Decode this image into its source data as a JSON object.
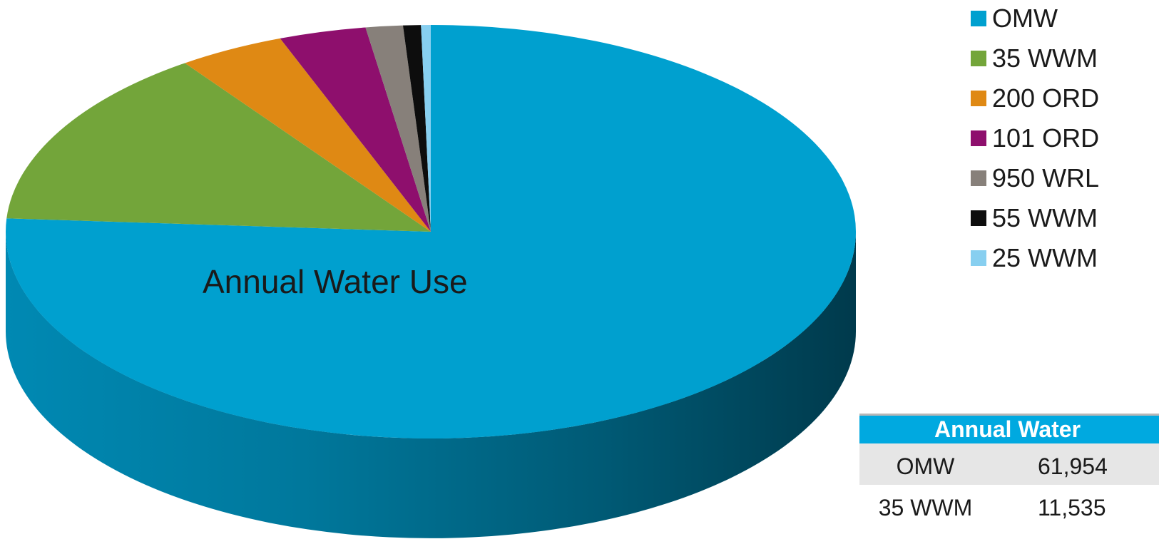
{
  "chart_data": {
    "type": "pie",
    "title": "Annual Water Use",
    "categories": [
      "OMW",
      "35 WWM",
      "200 ORD",
      "101 ORD",
      "950 WRL",
      "55 WWM",
      "25 WWM"
    ],
    "values": [
      61954,
      11535,
      3300,
      2700,
      1150,
      550,
      300
    ],
    "colors": [
      "#00a0cf",
      "#73a53a",
      "#df8914",
      "#8e0f6d",
      "#87807a",
      "#0d0d0d",
      "#87cff0"
    ],
    "legend_position": "right"
  },
  "table": {
    "header": "Annual Water",
    "rows": [
      {
        "name": "OMW",
        "value": "61,954"
      },
      {
        "name": "35 WWM",
        "value": "11,535"
      }
    ]
  }
}
